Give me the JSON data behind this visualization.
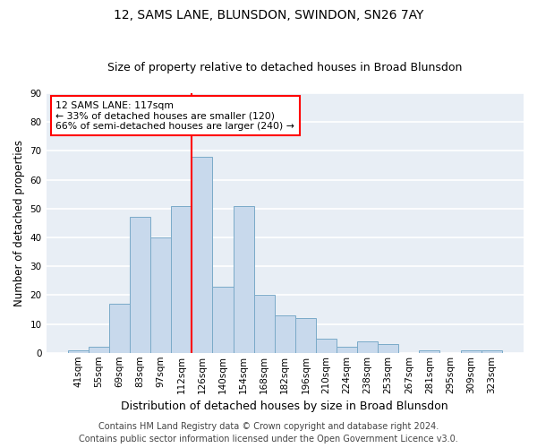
{
  "title1": "12, SAMS LANE, BLUNSDON, SWINDON, SN26 7AY",
  "title2": "Size of property relative to detached houses in Broad Blunsdon",
  "xlabel": "Distribution of detached houses by size in Broad Blunsdon",
  "ylabel": "Number of detached properties",
  "bin_labels": [
    "41sqm",
    "55sqm",
    "69sqm",
    "83sqm",
    "97sqm",
    "112sqm",
    "126sqm",
    "140sqm",
    "154sqm",
    "168sqm",
    "182sqm",
    "196sqm",
    "210sqm",
    "224sqm",
    "238sqm",
    "253sqm",
    "267sqm",
    "281sqm",
    "295sqm",
    "309sqm",
    "323sqm"
  ],
  "bin_values": [
    1,
    2,
    17,
    47,
    40,
    51,
    68,
    23,
    51,
    20,
    13,
    12,
    5,
    2,
    4,
    3,
    0,
    1,
    0,
    1,
    1
  ],
  "bar_color": "#c8d9ec",
  "bar_edge_color": "#7aaac8",
  "vline_color": "red",
  "vline_x": 6,
  "annotation_text": "12 SAMS LANE: 117sqm\n← 33% of detached houses are smaller (120)\n66% of semi-detached houses are larger (240) →",
  "annotation_box_facecolor": "white",
  "annotation_box_edgecolor": "red",
  "footer1": "Contains HM Land Registry data © Crown copyright and database right 2024.",
  "footer2": "Contains public sector information licensed under the Open Government Licence v3.0.",
  "ylim": [
    0,
    90
  ],
  "yticks": [
    0,
    10,
    20,
    30,
    40,
    50,
    60,
    70,
    80,
    90
  ],
  "bg_color": "#e8eef5",
  "grid_color": "white",
  "title1_fontsize": 10,
  "title2_fontsize": 9,
  "xlabel_fontsize": 9,
  "ylabel_fontsize": 8.5,
  "tick_fontsize": 7.5,
  "annotation_fontsize": 7.8,
  "footer_fontsize": 7.0
}
